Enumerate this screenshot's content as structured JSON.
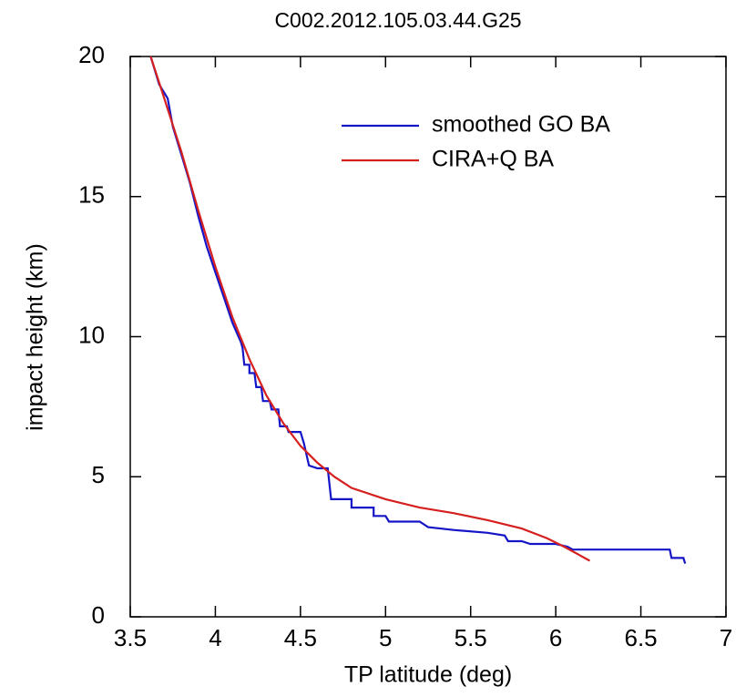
{
  "chart_data": {
    "type": "line",
    "title": "C002.2012.105.03.44.G25",
    "x_label": "TP latitude (deg)",
    "y_label": "impact height (km)",
    "xlim": [
      3.5,
      7
    ],
    "ylim": [
      0,
      20
    ],
    "xticks": [
      3.5,
      4,
      4.5,
      5,
      5.5,
      6,
      6.5,
      7
    ],
    "yticks": [
      0,
      5,
      10,
      15,
      20
    ],
    "legend": "upper right",
    "series": [
      {
        "name": "smoothed GO BA",
        "color": "#1515c8",
        "x": [
          3.62,
          3.67,
          3.7,
          3.72,
          3.75,
          3.8,
          3.85,
          3.9,
          3.95,
          4.0,
          4.05,
          4.1,
          4.15,
          4.16,
          4.17,
          4.2,
          4.2,
          4.23,
          4.24,
          4.27,
          4.28,
          4.32,
          4.33,
          4.37,
          4.38,
          4.42,
          4.43,
          4.5,
          4.52,
          4.55,
          4.6,
          4.66,
          4.68,
          4.8,
          4.8,
          4.93,
          4.93,
          5.0,
          5.02,
          5.2,
          5.25,
          5.4,
          5.6,
          5.7,
          5.72,
          5.8,
          5.85,
          6.0,
          6.07,
          6.1,
          6.67,
          6.68,
          6.75,
          6.76
        ],
        "values": [
          20,
          19,
          18.7,
          18.5,
          17.5,
          16.5,
          15.5,
          14.3,
          13.2,
          12.3,
          11.4,
          10.5,
          9.8,
          9.6,
          9.0,
          9.0,
          8.7,
          8.7,
          8.2,
          8.2,
          7.7,
          7.7,
          7.4,
          7.4,
          6.8,
          6.8,
          6.6,
          6.6,
          6.2,
          5.4,
          5.3,
          5.3,
          4.2,
          4.2,
          3.9,
          3.9,
          3.6,
          3.6,
          3.4,
          3.4,
          3.2,
          3.1,
          3.0,
          2.9,
          2.7,
          2.7,
          2.6,
          2.6,
          2.5,
          2.4,
          2.4,
          2.1,
          2.1,
          1.9
        ]
      },
      {
        "name": "CIRA+Q BA",
        "color": "#d62020",
        "x": [
          3.62,
          3.7,
          3.8,
          3.9,
          4.0,
          4.1,
          4.2,
          4.3,
          4.4,
          4.5,
          4.6,
          4.7,
          4.8,
          5.0,
          5.2,
          5.4,
          5.6,
          5.8,
          5.95,
          6.05,
          6.2
        ],
        "values": [
          20,
          18.5,
          16.6,
          14.5,
          12.5,
          10.7,
          9.2,
          7.9,
          6.9,
          6.1,
          5.5,
          5.0,
          4.6,
          4.2,
          3.9,
          3.7,
          3.45,
          3.15,
          2.8,
          2.5,
          2.0
        ]
      }
    ]
  }
}
